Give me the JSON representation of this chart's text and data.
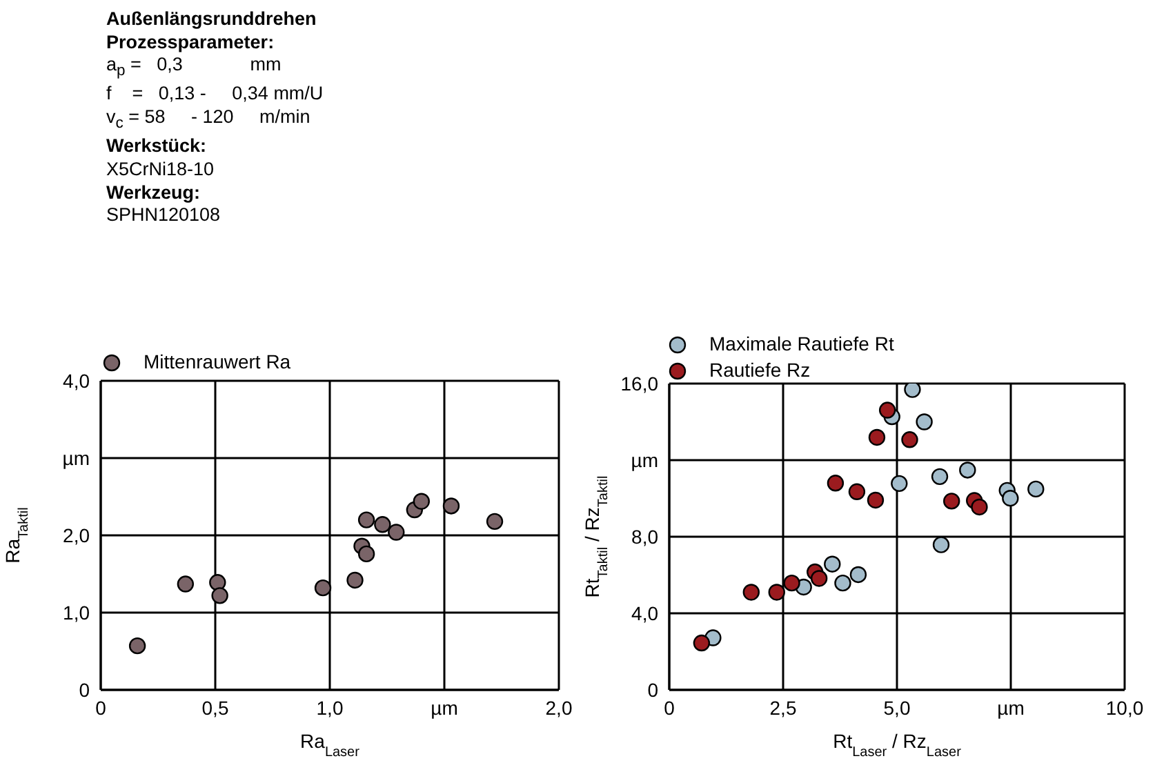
{
  "chart_data": [
    {
      "type": "other",
      "title": "Außenlängsrunddrehen",
      "annotations": [
        "Prozessparameter:",
        "a$_{p}$ =   0,3             mm",
        "f    =   0,13 -     0,34 mm/U",
        "v$_{c}$ = 58     - 120     m/min",
        "Werkstück:",
        "X5CrNi18-10",
        "Werkzeug:",
        "SPHN120108"
      ]
    },
    {
      "type": "scatter",
      "xlabel": "Ra$_{Laser}$",
      "ylabel": "Ra$_{Taktil}$",
      "xlim": [
        0,
        2
      ],
      "ylim": [
        0,
        4
      ],
      "xticks": [
        0,
        {
          "value": 0.5,
          "label": "0,5"
        },
        {
          "value": 1,
          "label": "1,0"
        },
        {
          "value": 1.5,
          "label": "µm"
        },
        {
          "value": 2,
          "label": "2,0"
        }
      ],
      "yticks": [
        0,
        {
          "value": 1,
          "label": "1,0"
        },
        {
          "value": 2,
          "label": "2,0"
        },
        {
          "value": 3,
          "label": "µm"
        },
        {
          "value": 4,
          "label": "4,0"
        }
      ],
      "grid": true,
      "legend": "top left",
      "marker": "circle",
      "series": [
        {
          "name": "Mittenrauwert Ra",
          "color": "#7a6468",
          "x": [
            0.16,
            0.37,
            0.51,
            0.52,
            0.97,
            1.11,
            1.14,
            1.16,
            1.16,
            1.23,
            1.29,
            1.37,
            1.4,
            1.53,
            1.72
          ],
          "values": [
            0.57,
            1.37,
            1.39,
            1.22,
            1.32,
            1.42,
            1.86,
            1.76,
            2.2,
            2.14,
            2.04,
            2.33,
            2.44,
            2.38,
            2.18
          ]
        }
      ]
    },
    {
      "type": "scatter",
      "xlabel": "Rt$_{Laser}$ / Rz$_{Laser}$",
      "ylabel": "Rt$_{Taktil}$ / Rz$_{Taktil}$",
      "xlim": [
        0,
        10
      ],
      "ylim": [
        0,
        16
      ],
      "xticks": [
        0,
        {
          "value": 2.5,
          "label": "2,5"
        },
        {
          "value": 5,
          "label": "5,0"
        },
        {
          "value": 7.5,
          "label": "µm"
        },
        {
          "value": 10,
          "label": "10,0"
        }
      ],
      "yticks": [
        0,
        {
          "value": 4,
          "label": "4,0"
        },
        {
          "value": 8,
          "label": "8,0"
        },
        {
          "value": 12,
          "label": "µm"
        },
        {
          "value": 16,
          "label": "16,0"
        }
      ],
      "grid": true,
      "legend": "top left",
      "marker": "circle",
      "series": [
        {
          "name": "Maximale Rautiefe Rt",
          "color": "#a3bccb",
          "x": [
            0.96,
            2.95,
            3.58,
            3.81,
            4.15,
            4.89,
            5.34,
            5.6,
            5.05,
            5.94,
            5.97,
            6.55,
            7.42,
            7.49,
            8.05
          ],
          "values": [
            2.72,
            5.37,
            6.57,
            5.58,
            6.02,
            14.27,
            15.69,
            14.0,
            10.78,
            11.14,
            7.58,
            11.48,
            10.42,
            10.01,
            10.49
          ]
        },
        {
          "name": "Rautiefe Rz",
          "color": "#9b1b1f",
          "x": [
            0.71,
            1.8,
            2.36,
            2.69,
            3.2,
            3.29,
            3.65,
            4.12,
            4.53,
            4.56,
            4.79,
            5.28,
            6.2,
            6.7,
            6.81
          ],
          "values": [
            2.45,
            5.1,
            5.1,
            5.58,
            6.16,
            5.82,
            10.8,
            10.35,
            9.91,
            13.19,
            14.61,
            13.07,
            9.86,
            9.89,
            9.55
          ]
        }
      ]
    }
  ]
}
